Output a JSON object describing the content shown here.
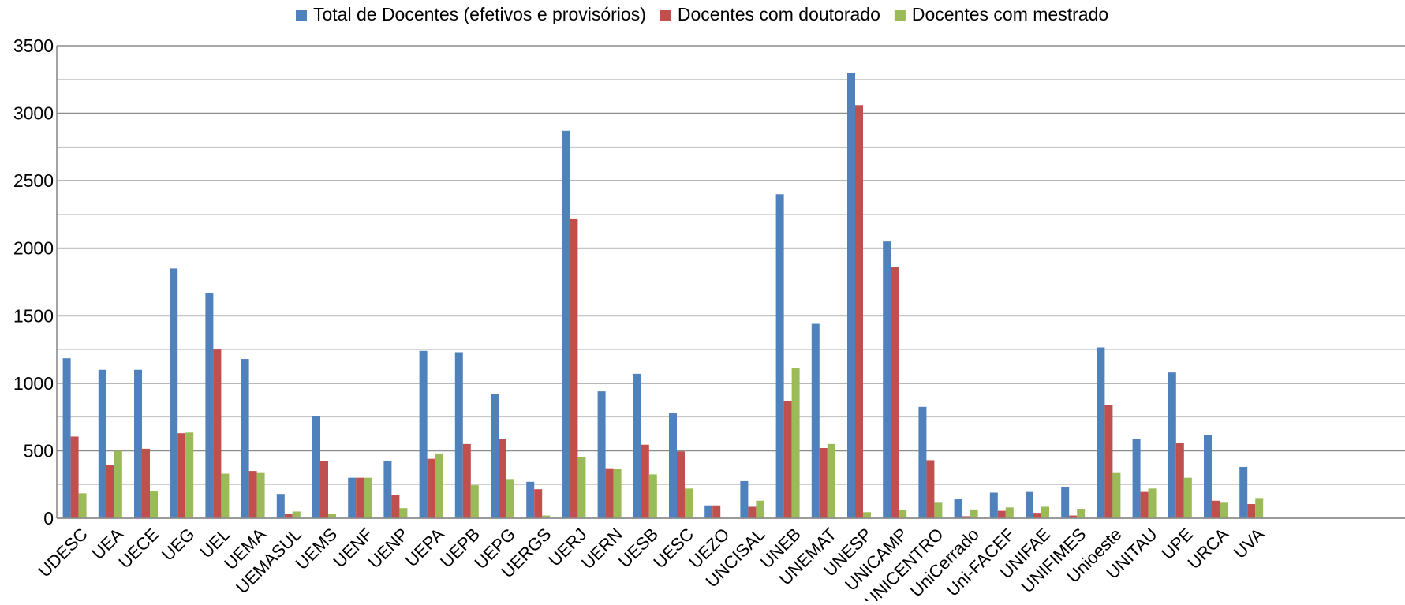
{
  "chart_data": {
    "type": "bar",
    "title": "",
    "xlabel": "",
    "ylabel": "",
    "ylim": [
      0,
      3500
    ],
    "yticks": [
      0,
      500,
      1000,
      1500,
      2000,
      2500,
      3000,
      3500
    ],
    "grid": true,
    "legend_position": "top",
    "categories": [
      "UDESC",
      "UEA",
      "UECE",
      "UEG",
      "UEL",
      "UEMA",
      "UEMASUL",
      "UEMS",
      "UENF",
      "UENP",
      "UEPA",
      "UEPB",
      "UEPG",
      "UERGS",
      "UERJ",
      "UERN",
      "UESB",
      "UESC",
      "UEZO",
      "UNCISAL",
      "UNEB",
      "UNEMAT",
      "UNESP",
      "UNICAMP",
      "UNICENTRO",
      "UniCerrado",
      "Uni-FACEF",
      "UNIFAE",
      "UNIFIMES",
      "Unioeste",
      "UNITAU",
      "UPE",
      "URCA",
      "UVA"
    ],
    "series": [
      {
        "name": "Total de Docentes (efetivos e provisórios)",
        "color": "#4F81BD",
        "values": [
          1185,
          1100,
          1100,
          1850,
          1670,
          1180,
          180,
          755,
          300,
          425,
          1240,
          1230,
          920,
          270,
          2870,
          940,
          1070,
          780,
          95,
          275,
          2400,
          1440,
          3300,
          2050,
          825,
          140,
          190,
          195,
          230,
          1265,
          590,
          1080,
          615,
          380
        ]
      },
      {
        "name": "Docentes com doutorado",
        "color": "#C0504D",
        "values": [
          605,
          395,
          515,
          630,
          1250,
          350,
          35,
          425,
          300,
          170,
          440,
          550,
          585,
          215,
          2215,
          370,
          545,
          495,
          95,
          85,
          865,
          520,
          3060,
          1860,
          430,
          15,
          55,
          40,
          20,
          840,
          195,
          560,
          130,
          105
        ]
      },
      {
        "name": "Docentes com mestrado",
        "color": "#9BBB59",
        "values": [
          185,
          500,
          200,
          635,
          330,
          335,
          50,
          30,
          300,
          75,
          480,
          245,
          290,
          20,
          450,
          365,
          325,
          220,
          0,
          130,
          1110,
          550,
          45,
          60,
          115,
          65,
          80,
          85,
          70,
          335,
          220,
          300,
          115,
          150
        ]
      }
    ]
  }
}
